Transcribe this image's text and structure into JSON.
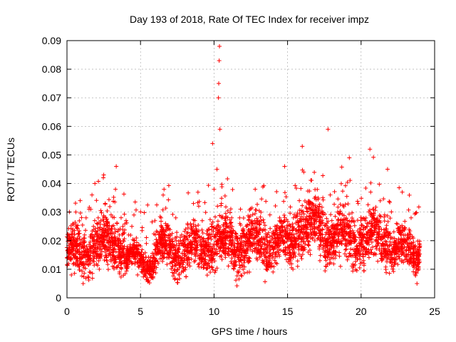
{
  "chart_data": {
    "type": "scatter",
    "title": "Day 193 of 2018, Rate Of TEC Index for receiver impz",
    "xlabel": "GPS time / hours",
    "ylabel": "ROTI / TECUs",
    "xlim": [
      0,
      25
    ],
    "ylim": [
      0,
      0.09
    ],
    "xticks": [
      {
        "value": 0,
        "label": "0"
      },
      {
        "value": 5,
        "label": "5"
      },
      {
        "value": 10,
        "label": "10"
      },
      {
        "value": 15,
        "label": "15"
      },
      {
        "value": 20,
        "label": "20"
      },
      {
        "value": 25,
        "label": "25"
      }
    ],
    "yticks": [
      {
        "value": 0,
        "label": "0"
      },
      {
        "value": 0.01,
        "label": "0.01"
      },
      {
        "value": 0.02,
        "label": "0.02"
      },
      {
        "value": 0.03,
        "label": "0.03"
      },
      {
        "value": 0.04,
        "label": "0.04"
      },
      {
        "value": 0.05,
        "label": "0.05"
      },
      {
        "value": 0.06,
        "label": "0.06"
      },
      {
        "value": 0.07,
        "label": "0.07"
      },
      {
        "value": 0.08,
        "label": "0.08"
      },
      {
        "value": 0.09,
        "label": "0.09"
      }
    ],
    "grid": true,
    "marker": "plus",
    "color": "#ff0000",
    "series": [
      {
        "name": "ROTI",
        "points": [
          [
            0.05,
            0.021
          ],
          [
            0.1,
            0.012
          ],
          [
            0.2,
            0.017
          ],
          [
            0.3,
            0.008
          ],
          [
            0.4,
            0.024
          ],
          [
            0.5,
            0.014
          ],
          [
            0.6,
            0.03
          ],
          [
            0.7,
            0.019
          ],
          [
            0.8,
            0.011
          ],
          [
            0.9,
            0.034
          ],
          [
            1.0,
            0.016
          ],
          [
            1.1,
            0.005
          ],
          [
            1.2,
            0.022
          ],
          [
            1.3,
            0.028
          ],
          [
            1.4,
            0.013
          ],
          [
            1.5,
            0.031
          ],
          [
            1.6,
            0.018
          ],
          [
            1.7,
            0.036
          ],
          [
            1.8,
            0.025
          ],
          [
            1.9,
            0.04
          ],
          [
            2.0,
            0.015
          ],
          [
            2.1,
            0.022
          ],
          [
            2.2,
            0.01
          ],
          [
            2.3,
            0.027
          ],
          [
            2.4,
            0.019
          ],
          [
            2.5,
            0.043
          ],
          [
            2.6,
            0.033
          ],
          [
            2.7,
            0.013
          ],
          [
            2.8,
            0.024
          ],
          [
            2.9,
            0.017
          ],
          [
            3.0,
            0.029
          ],
          [
            3.1,
            0.011
          ],
          [
            3.2,
            0.021
          ],
          [
            3.3,
            0.038
          ],
          [
            3.35,
            0.046
          ],
          [
            3.4,
            0.026
          ],
          [
            3.5,
            0.016
          ],
          [
            3.6,
            0.02
          ],
          [
            3.7,
            0.012
          ],
          [
            3.8,
            0.025
          ],
          [
            3.9,
            0.018
          ],
          [
            4.0,
            0.014
          ],
          [
            4.2,
            0.022
          ],
          [
            4.4,
            0.012
          ],
          [
            4.6,
            0.017
          ],
          [
            4.8,
            0.008
          ],
          [
            5.0,
            0.015
          ],
          [
            5.2,
            0.011
          ],
          [
            5.4,
            0.019
          ],
          [
            5.6,
            0.013
          ],
          [
            5.8,
            0.007
          ],
          [
            6.0,
            0.016
          ],
          [
            6.2,
            0.012
          ],
          [
            6.4,
            0.021
          ],
          [
            6.6,
            0.038
          ],
          [
            6.7,
            0.026
          ],
          [
            6.8,
            0.014
          ],
          [
            7.0,
            0.019
          ],
          [
            7.2,
            0.011
          ],
          [
            7.4,
            0.028
          ],
          [
            7.6,
            0.017
          ],
          [
            7.8,
            0.022
          ],
          [
            8.0,
            0.013
          ],
          [
            8.2,
            0.026
          ],
          [
            8.4,
            0.016
          ],
          [
            8.6,
            0.033
          ],
          [
            8.8,
            0.02
          ],
          [
            9.0,
            0.012
          ],
          [
            9.2,
            0.027
          ],
          [
            9.4,
            0.018
          ],
          [
            9.6,
            0.024
          ],
          [
            9.8,
            0.015
          ],
          [
            9.9,
            0.054
          ],
          [
            10.0,
            0.038
          ],
          [
            10.1,
            0.022
          ],
          [
            10.2,
            0.045
          ],
          [
            10.3,
            0.07
          ],
          [
            10.32,
            0.075
          ],
          [
            10.35,
            0.083
          ],
          [
            10.37,
            0.088
          ],
          [
            10.4,
            0.059
          ],
          [
            10.5,
            0.033
          ],
          [
            10.6,
            0.019
          ],
          [
            10.8,
            0.026
          ],
          [
            11.0,
            0.015
          ],
          [
            11.2,
            0.028
          ],
          [
            11.4,
            0.013
          ],
          [
            11.6,
            0.021
          ],
          [
            11.8,
            0.031
          ],
          [
            12.0,
            0.018
          ],
          [
            12.2,
            0.025
          ],
          [
            12.4,
            0.009
          ],
          [
            12.6,
            0.022
          ],
          [
            12.8,
            0.038
          ],
          [
            13.0,
            0.016
          ],
          [
            13.2,
            0.027
          ],
          [
            13.4,
            0.012
          ],
          [
            13.6,
            0.02
          ],
          [
            13.8,
            0.029
          ],
          [
            14.0,
            0.014
          ],
          [
            14.2,
            0.023
          ],
          [
            14.4,
            0.018
          ],
          [
            14.6,
            0.026
          ],
          [
            14.8,
            0.046
          ],
          [
            15.0,
            0.021
          ],
          [
            15.2,
            0.013
          ],
          [
            15.4,
            0.028
          ],
          [
            15.6,
            0.019
          ],
          [
            15.8,
            0.034
          ],
          [
            16.0,
            0.053
          ],
          [
            16.1,
            0.044
          ],
          [
            16.2,
            0.025
          ],
          [
            16.4,
            0.016
          ],
          [
            16.6,
            0.031
          ],
          [
            16.8,
            0.022
          ],
          [
            17.0,
            0.028
          ],
          [
            17.2,
            0.013
          ],
          [
            17.4,
            0.035
          ],
          [
            17.6,
            0.02
          ],
          [
            17.75,
            0.059
          ],
          [
            17.9,
            0.036
          ],
          [
            18.0,
            0.025
          ],
          [
            18.2,
            0.016
          ],
          [
            18.4,
            0.03
          ],
          [
            18.6,
            0.011
          ],
          [
            18.8,
            0.024
          ],
          [
            19.0,
            0.018
          ],
          [
            19.2,
            0.049
          ],
          [
            19.4,
            0.027
          ],
          [
            19.6,
            0.015
          ],
          [
            19.8,
            0.033
          ],
          [
            20.0,
            0.02
          ],
          [
            20.2,
            0.012
          ],
          [
            20.4,
            0.026
          ],
          [
            20.6,
            0.052
          ],
          [
            20.8,
            0.031
          ],
          [
            21.0,
            0.018
          ],
          [
            21.2,
            0.024
          ],
          [
            21.4,
            0.013
          ],
          [
            21.6,
            0.029
          ],
          [
            21.8,
            0.045
          ],
          [
            22.0,
            0.021
          ],
          [
            22.2,
            0.011
          ],
          [
            22.4,
            0.026
          ],
          [
            22.6,
            0.017
          ],
          [
            22.8,
            0.037
          ],
          [
            23.0,
            0.022
          ],
          [
            23.2,
            0.013
          ],
          [
            23.4,
            0.028
          ],
          [
            23.6,
            0.016
          ],
          [
            23.7,
            0.009
          ],
          [
            23.8,
            0.005
          ],
          [
            23.9,
            0.012
          ]
        ]
      }
    ],
    "density_bands": [
      {
        "t0": 0,
        "t1": 1.5,
        "base": 0.016,
        "spread": 0.007
      },
      {
        "t0": 1.5,
        "t1": 4.0,
        "base": 0.019,
        "spread": 0.008
      },
      {
        "t0": 4.0,
        "t1": 6.0,
        "base": 0.013,
        "spread": 0.004
      },
      {
        "t0": 6.0,
        "t1": 9.5,
        "base": 0.017,
        "spread": 0.007
      },
      {
        "t0": 9.5,
        "t1": 15.5,
        "base": 0.019,
        "spread": 0.008
      },
      {
        "t0": 15.5,
        "t1": 17.5,
        "base": 0.025,
        "spread": 0.009
      },
      {
        "t0": 17.5,
        "t1": 22.0,
        "base": 0.021,
        "spread": 0.008
      },
      {
        "t0": 22.0,
        "t1": 24.0,
        "base": 0.017,
        "spread": 0.006
      }
    ]
  }
}
